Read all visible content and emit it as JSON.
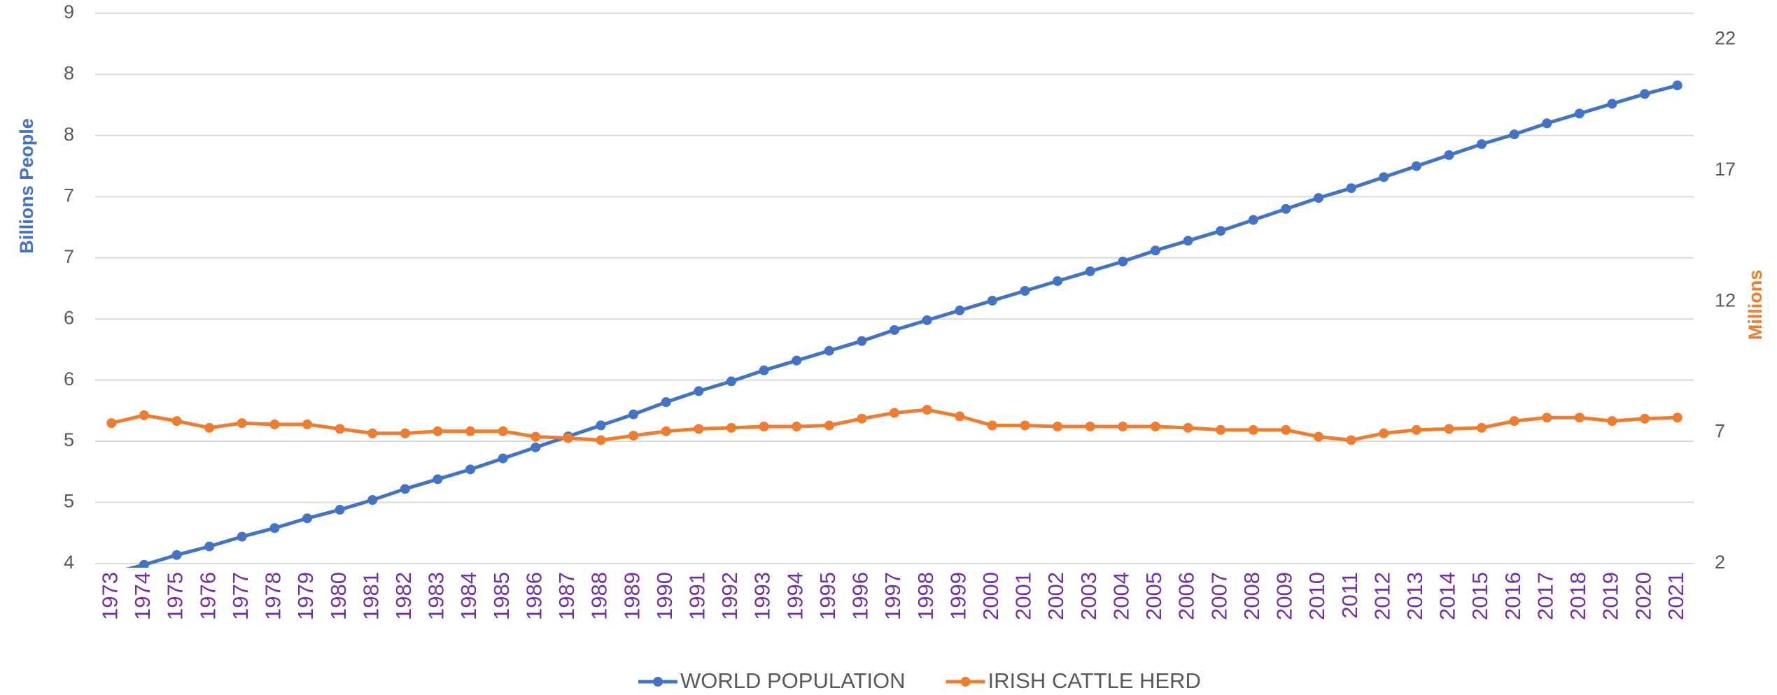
{
  "chart_data": {
    "type": "line",
    "ylabel": "Billions People",
    "y2label": "Millions",
    "categories": [
      "1973",
      "1974",
      "1975",
      "1976",
      "1977",
      "1978",
      "1979",
      "1980",
      "1981",
      "1982",
      "1983",
      "1984",
      "1985",
      "1986",
      "1987",
      "1988",
      "1989",
      "1990",
      "1991",
      "1992",
      "1993",
      "1994",
      "1995",
      "1996",
      "1997",
      "1998",
      "1999",
      "2000",
      "2001",
      "2002",
      "2003",
      "2004",
      "2005",
      "2006",
      "2007",
      "2008",
      "2009",
      "2010",
      "2011",
      "2012",
      "2013",
      "2014",
      "2015",
      "2016",
      "2017",
      "2018",
      "2019",
      "2020",
      "2021"
    ],
    "ylim": [
      4,
      8.5
    ],
    "yticks": [
      {
        "value": 4,
        "label": "4"
      },
      {
        "value": 4.5,
        "label": "5"
      },
      {
        "value": 5,
        "label": "5"
      },
      {
        "value": 5.5,
        "label": "6"
      },
      {
        "value": 6,
        "label": "6"
      },
      {
        "value": 6.5,
        "label": "7"
      },
      {
        "value": 7,
        "label": "7"
      },
      {
        "value": 7.5,
        "label": "8"
      },
      {
        "value": 8,
        "label": "8"
      },
      {
        "value": 8.5,
        "label": "9"
      }
    ],
    "y2lim": [
      2,
      23
    ],
    "y2ticks": [
      2,
      7,
      12,
      17,
      22
    ],
    "grid": true,
    "legend": "bottom",
    "series": [
      {
        "name": "WORLD POPULATION",
        "color": "#4472c4",
        "axis": "y",
        "values": [
          3.92,
          3.99,
          4.07,
          4.14,
          4.22,
          4.29,
          4.37,
          4.44,
          4.52,
          4.61,
          4.69,
          4.77,
          4.86,
          4.95,
          5.04,
          5.13,
          5.22,
          5.32,
          5.41,
          5.49,
          5.58,
          5.66,
          5.74,
          5.82,
          5.91,
          5.99,
          6.07,
          6.15,
          6.23,
          6.31,
          6.39,
          6.47,
          6.56,
          6.64,
          6.72,
          6.81,
          6.9,
          6.99,
          7.07,
          7.16,
          7.25,
          7.34,
          7.43,
          7.51,
          7.6,
          7.68,
          7.76,
          7.84,
          7.91
        ]
      },
      {
        "name": "IRISH CATTLE HERD",
        "color": "#ed7d31",
        "axis": "y2",
        "values": [
          7.36,
          7.66,
          7.44,
          7.18,
          7.36,
          7.31,
          7.31,
          7.14,
          6.97,
          6.97,
          7.05,
          7.05,
          7.05,
          6.84,
          6.79,
          6.71,
          6.88,
          7.05,
          7.14,
          7.18,
          7.23,
          7.23,
          7.27,
          7.53,
          7.75,
          7.87,
          7.62,
          7.27,
          7.27,
          7.23,
          7.23,
          7.23,
          7.23,
          7.18,
          7.1,
          7.1,
          7.1,
          6.84,
          6.71,
          6.97,
          7.1,
          7.14,
          7.18,
          7.44,
          7.57,
          7.57,
          7.44,
          7.53,
          7.57
        ]
      }
    ]
  }
}
